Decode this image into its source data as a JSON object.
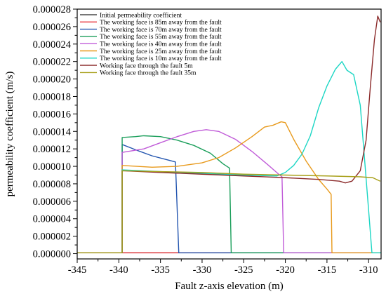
{
  "chart_data": {
    "type": "line",
    "title": "",
    "xlabel": "Fault z-axis elevation (m)",
    "ylabel": "permeability coefficient (m/s)",
    "xlim": [
      -345,
      -308.5
    ],
    "ylim": [
      -6e-07,
      2.8e-05
    ],
    "xticks": [
      -345,
      -340,
      -335,
      -330,
      -325,
      -320,
      -315,
      -310
    ],
    "xtick_labels": [
      "-345",
      "-340",
      "-335",
      "-330",
      "-325",
      "-320",
      "-315",
      "-310"
    ],
    "yticks": [
      0,
      2e-06,
      4e-06,
      6e-06,
      8e-06,
      1e-05,
      1.2e-05,
      1.4e-05,
      1.6e-05,
      1.8e-05,
      2e-05,
      2.2e-05,
      2.4e-05,
      2.6e-05,
      2.8e-05
    ],
    "ytick_labels": [
      "0.000000",
      "0.000002",
      "0.000004",
      "0.000006",
      "0.000008",
      "0.000010",
      "0.000012",
      "0.000014",
      "0.000016",
      "0.000018",
      "0.000020",
      "0.000022",
      "0.000024",
      "0.000026",
      "0.000028"
    ],
    "grid": false,
    "legend_position": "top-left",
    "series": [
      {
        "name": "Initial permeability coefficient",
        "color": "#4a4a4a",
        "points": [
          [
            -345,
            1e-07
          ],
          [
            -308.5,
            1e-07
          ]
        ]
      },
      {
        "name": "The working face is 85m away from the fault",
        "color": "#e8333a",
        "points": [
          [
            -345,
            1e-07
          ],
          [
            -308.5,
            1e-07
          ]
        ]
      },
      {
        "name": "The working face is 70m away from the fault",
        "color": "#2456b0",
        "points": [
          [
            -345,
            1e-07
          ],
          [
            -339.6,
            1e-07
          ],
          [
            -339.6,
            1.25e-05
          ],
          [
            -338,
            1.19e-05
          ],
          [
            -336,
            1.12e-05
          ],
          [
            -334,
            1.07e-05
          ],
          [
            -333.2,
            1.05e-05
          ],
          [
            -332.8,
            1e-07
          ],
          [
            -308.5,
            1e-07
          ]
        ]
      },
      {
        "name": "The working face is 55m away from the fault",
        "color": "#1a9e5a",
        "points": [
          [
            -345,
            1e-07
          ],
          [
            -339.6,
            1e-07
          ],
          [
            -339.6,
            1.33e-05
          ],
          [
            -338,
            1.34e-05
          ],
          [
            -337,
            1.35e-05
          ],
          [
            -335,
            1.34e-05
          ],
          [
            -333,
            1.3e-05
          ],
          [
            -331,
            1.24e-05
          ],
          [
            -329,
            1.15e-05
          ],
          [
            -327.5,
            1.03e-05
          ],
          [
            -326.7,
            9.8e-06
          ],
          [
            -326.5,
            1e-07
          ],
          [
            -308.5,
            1e-07
          ]
        ]
      },
      {
        "name": "The working face is 40m away from the fault",
        "color": "#c05bd8",
        "points": [
          [
            -345,
            1e-07
          ],
          [
            -339.6,
            1e-07
          ],
          [
            -339.6,
            1.16e-05
          ],
          [
            -337,
            1.2e-05
          ],
          [
            -335,
            1.27e-05
          ],
          [
            -333,
            1.34e-05
          ],
          [
            -331,
            1.4e-05
          ],
          [
            -329.5,
            1.42e-05
          ],
          [
            -328,
            1.4e-05
          ],
          [
            -326,
            1.31e-05
          ],
          [
            -324,
            1.17e-05
          ],
          [
            -322,
            1.01e-05
          ],
          [
            -320.8,
            9.1e-06
          ],
          [
            -320.4,
            8.8e-06
          ],
          [
            -320.2,
            1e-07
          ],
          [
            -308.5,
            1e-07
          ]
        ]
      },
      {
        "name": "The working face is 25m away from the fault",
        "color": "#e89a1c",
        "points": [
          [
            -345,
            1e-07
          ],
          [
            -339.6,
            1e-07
          ],
          [
            -339.6,
            1.01e-05
          ],
          [
            -336,
            9.9e-06
          ],
          [
            -333,
            1e-05
          ],
          [
            -330,
            1.04e-05
          ],
          [
            -328,
            1.1e-05
          ],
          [
            -326,
            1.21e-05
          ],
          [
            -324,
            1.34e-05
          ],
          [
            -322.5,
            1.45e-05
          ],
          [
            -321.5,
            1.47e-05
          ],
          [
            -320.5,
            1.51e-05
          ],
          [
            -320,
            1.5e-05
          ],
          [
            -319,
            1.31e-05
          ],
          [
            -317.5,
            1.06e-05
          ],
          [
            -316,
            8.5e-06
          ],
          [
            -315,
            7.4e-06
          ],
          [
            -314.5,
            6.8e-06
          ],
          [
            -314.4,
            1e-07
          ],
          [
            -308.5,
            1e-07
          ]
        ]
      },
      {
        "name": "The working face is 10m away from the fault",
        "color": "#1bd6c4",
        "points": [
          [
            -345,
            1e-07
          ],
          [
            -339.6,
            1e-07
          ],
          [
            -339.6,
            9.6e-06
          ],
          [
            -335,
            9.4e-06
          ],
          [
            -330,
            9.2e-06
          ],
          [
            -325,
            9e-06
          ],
          [
            -321,
            8.9e-06
          ],
          [
            -320,
            9.3e-06
          ],
          [
            -319,
            1.01e-05
          ],
          [
            -318,
            1.14e-05
          ],
          [
            -317,
            1.35e-05
          ],
          [
            -316,
            1.67e-05
          ],
          [
            -315,
            1.92e-05
          ],
          [
            -314,
            2.11e-05
          ],
          [
            -313.2,
            2.2e-05
          ],
          [
            -312.6,
            2.1e-05
          ],
          [
            -311.8,
            2.05e-05
          ],
          [
            -311,
            1.7e-05
          ],
          [
            -310.5,
            1.1e-05
          ],
          [
            -310,
            5e-06
          ],
          [
            -309.6,
            1e-07
          ],
          [
            -308.5,
            1e-07
          ]
        ]
      },
      {
        "name": "Working face through the fault 5m",
        "color": "#8b2a2a",
        "points": [
          [
            -345,
            1e-07
          ],
          [
            -339.6,
            1e-07
          ],
          [
            -339.6,
            9.5e-06
          ],
          [
            -335,
            9.3e-06
          ],
          [
            -330,
            9.1e-06
          ],
          [
            -325,
            8.9e-06
          ],
          [
            -320,
            8.7e-06
          ],
          [
            -316,
            8.5e-06
          ],
          [
            -313.5,
            8.3e-06
          ],
          [
            -312.8,
            8.1e-06
          ],
          [
            -312,
            8.3e-06
          ],
          [
            -311,
            9.5e-06
          ],
          [
            -310.3,
            1.3e-05
          ],
          [
            -309.8,
            1.9e-05
          ],
          [
            -309.3,
            2.45e-05
          ],
          [
            -308.9,
            2.72e-05
          ],
          [
            -308.6,
            2.65e-05
          ]
        ]
      },
      {
        "name": "Working face through the fault 35m",
        "color": "#a8a01a",
        "points": [
          [
            -345,
            1e-07
          ],
          [
            -339.6,
            1e-07
          ],
          [
            -339.6,
            9.5e-06
          ],
          [
            -335,
            9.4e-06
          ],
          [
            -330,
            9.3e-06
          ],
          [
            -325,
            9.1e-06
          ],
          [
            -320,
            9e-06
          ],
          [
            -315,
            8.9e-06
          ],
          [
            -311,
            8.8e-06
          ],
          [
            -309.5,
            8.7e-06
          ],
          [
            -308.6,
            8.3e-06
          ]
        ]
      }
    ]
  }
}
